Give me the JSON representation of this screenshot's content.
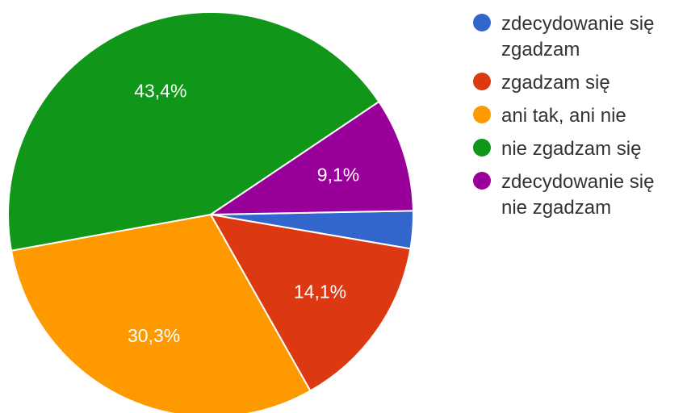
{
  "chart_data": {
    "type": "pie",
    "title": "",
    "slices": [
      {
        "name": "zdecydowanie się zgadzam",
        "value": 3.0,
        "label": "",
        "color": "#3366cc"
      },
      {
        "name": "zgadzam się",
        "value": 14.1,
        "label": "14,1%",
        "color": "#dc3912"
      },
      {
        "name": "ani tak, ani nie",
        "value": 30.3,
        "label": "30,3%",
        "color": "#ff9900"
      },
      {
        "name": "nie zgadzam się",
        "value": 43.4,
        "label": "43,4%",
        "color": "#109618"
      },
      {
        "name": "zdecydowanie się nie zgadzam",
        "value": 9.1,
        "label": "9,1%",
        "color": "#990099"
      }
    ],
    "legend_placement": "right"
  },
  "legend": [
    {
      "text": "zdecydowanie się zgadzam",
      "color": "#3366cc"
    },
    {
      "text": "zgadzam się",
      "color": "#dc3912"
    },
    {
      "text": "ani tak, ani nie",
      "color": "#ff9900"
    },
    {
      "text": "nie zgadzam się",
      "color": "#109618"
    },
    {
      "text": "zdecydowanie się nie zgadzam",
      "color": "#990099"
    }
  ]
}
